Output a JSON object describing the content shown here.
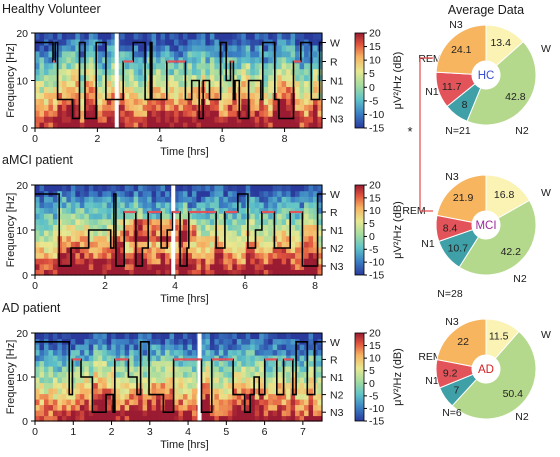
{
  "chart_data": [
    {
      "type": "heatmap",
      "title": "Healthy Volunteer",
      "xlabel": "Time [hrs]",
      "ylabel": "Frequency [Hz]",
      "xlim": [
        0,
        9.2
      ],
      "ylim": [
        0,
        20
      ],
      "xticks": [
        "0",
        "2",
        "4",
        "6",
        "8"
      ],
      "xtick_values": [
        0,
        2,
        4,
        6,
        8
      ],
      "yticks": [
        "0",
        "10",
        "20"
      ],
      "colorbar_label": "μV²/Hz (dB)",
      "colorbar_ticks": [
        "20",
        "15",
        "10",
        "5",
        "0",
        "-5",
        "-10",
        "-15"
      ],
      "colorbar_range": [
        -15,
        20
      ],
      "stage_labels": [
        "W",
        "R",
        "N1",
        "N2",
        "N3"
      ],
      "hypnogram_seed": 11,
      "gap_times": [
        2.62
      ]
    },
    {
      "type": "heatmap",
      "title": "aMCI patient",
      "xlabel": "Time [hrs]",
      "ylabel": "Frequency [Hz]",
      "xlim": [
        0,
        8.2
      ],
      "ylim": [
        0,
        20
      ],
      "xticks": [
        "0",
        "2",
        "4",
        "6",
        "8"
      ],
      "xtick_values": [
        0,
        2,
        4,
        6,
        8
      ],
      "yticks": [
        "0",
        "10",
        "20"
      ],
      "colorbar_label": "μV²/Hz (dB)",
      "colorbar_ticks": [
        "20",
        "15",
        "10",
        "5",
        "0",
        "-5",
        "-10",
        "-15"
      ],
      "colorbar_range": [
        -15,
        20
      ],
      "stage_labels": [
        "W",
        "R",
        "N1",
        "N2",
        "N3"
      ],
      "hypnogram_seed": 29,
      "gap_times": [
        3.95
      ]
    },
    {
      "type": "heatmap",
      "title": "AD patient",
      "xlabel": "Time [hrs]",
      "ylabel": "Frequency [Hz]",
      "xlim": [
        0,
        7.5
      ],
      "ylim": [
        0,
        20
      ],
      "xticks": [
        "0",
        "1",
        "2",
        "3",
        "4",
        "5",
        "6",
        "7"
      ],
      "xtick_values": [
        0,
        1,
        2,
        3,
        4,
        5,
        6,
        7
      ],
      "yticks": [
        "0",
        "10",
        "20"
      ],
      "colorbar_label": "μV²/Hz (dB)",
      "colorbar_ticks": [
        "20",
        "15",
        "10",
        "5",
        "0",
        "-5",
        "-10",
        "-15"
      ],
      "colorbar_range": [
        -15,
        20
      ],
      "stage_labels": [
        "W",
        "R",
        "N1",
        "N2",
        "N3"
      ],
      "hypnogram_seed": 47,
      "gap_times": [
        4.3
      ]
    },
    {
      "type": "pie",
      "title": "Average Data",
      "center_label": "HC",
      "n_label": "N=21",
      "center_color": "#3a4fd0",
      "slices": [
        {
          "label": "W",
          "value": 13.4
        },
        {
          "label": "N2",
          "value": 42.8
        },
        {
          "label": "N1",
          "value": 8.0
        },
        {
          "label": "REM",
          "value": 11.7
        },
        {
          "label": "N3",
          "value": 24.1
        }
      ]
    },
    {
      "type": "pie",
      "center_label": "MCI",
      "n_label": "N=28",
      "center_color": "#9b2a9a",
      "slices": [
        {
          "label": "W",
          "value": 16.8
        },
        {
          "label": "N2",
          "value": 42.2
        },
        {
          "label": "N1",
          "value": 10.7
        },
        {
          "label": "REM",
          "value": 8.4
        },
        {
          "label": "N3",
          "value": 21.9
        }
      ]
    },
    {
      "type": "pie",
      "center_label": "AD",
      "n_label": "N=6",
      "center_color": "#d32020",
      "slices": [
        {
          "label": "W",
          "value": 11.5
        },
        {
          "label": "N2",
          "value": 50.4
        },
        {
          "label": "N1",
          "value": 7.0
        },
        {
          "label": "REM",
          "value": 9.2
        },
        {
          "label": "N3",
          "value": 22.0
        }
      ]
    }
  ],
  "stage_colors": {
    "W": "#faf3b4",
    "N2": "#b5d98c",
    "N1": "#3fa0a8",
    "REM": "#e2545a",
    "N3": "#f7b560"
  },
  "significance_marker": "*"
}
